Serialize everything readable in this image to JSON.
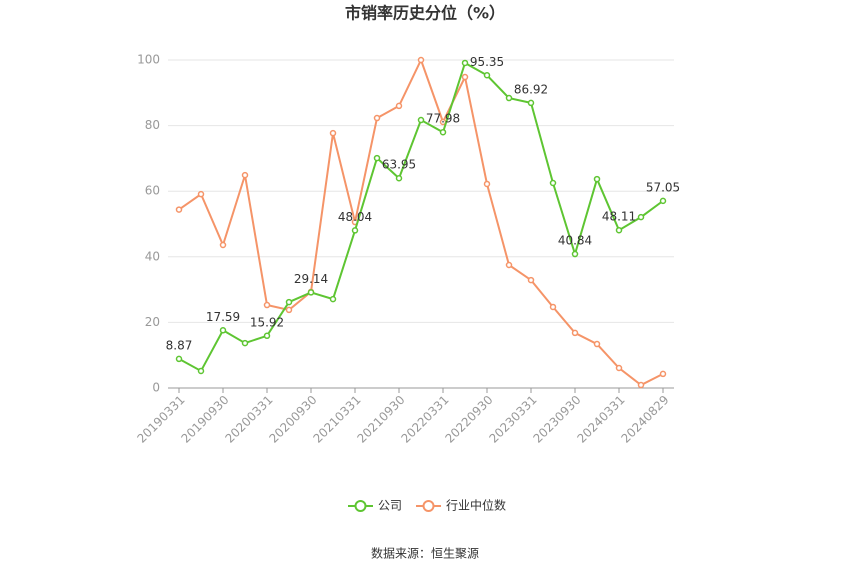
{
  "chart_data": {
    "type": "line",
    "title": "市销率历史分位（%）",
    "categories": [
      "20190331",
      null,
      "20190930",
      null,
      "20200331",
      null,
      "20200930",
      null,
      "20210331",
      null,
      "20210930",
      null,
      "20220331",
      null,
      "20220930",
      null,
      "20230331",
      null,
      "20230930",
      null,
      "20240331",
      null,
      "20240829"
    ],
    "series": [
      {
        "name": "公司",
        "color": "#5ec532",
        "values": [
          8.87,
          5.2,
          17.59,
          13.7,
          15.92,
          26.2,
          29.14,
          27.1,
          48.04,
          70.1,
          63.95,
          81.7,
          77.98,
          99.1,
          95.35,
          88.4,
          86.92,
          62.5,
          40.84,
          63.7,
          48.11,
          52.1,
          57.05
        ],
        "value_labels": [
          "8.87",
          null,
          "17.59",
          null,
          "15.92",
          null,
          "29.14",
          null,
          "48.04",
          null,
          "63.95",
          null,
          "77.98",
          null,
          "95.35",
          null,
          "86.92",
          null,
          "40.84",
          null,
          "48.11",
          null,
          "57.05"
        ]
      },
      {
        "name": "行业中位数",
        "color": "#f59468",
        "values": [
          54.4,
          59.1,
          43.6,
          64.9,
          25.3,
          23.8,
          29.3,
          77.7,
          50.6,
          82.3,
          86.0,
          100.0,
          81.1,
          94.8,
          62.2,
          37.5,
          32.9,
          24.7,
          16.8,
          13.4,
          6.1,
          0.9,
          4.3
        ]
      }
    ],
    "ylim": [
      0,
      100
    ],
    "yticks": [
      0,
      20,
      40,
      60,
      80,
      100
    ],
    "grid": true,
    "legend": "bottom",
    "source": "数据来源：恒生聚源"
  }
}
